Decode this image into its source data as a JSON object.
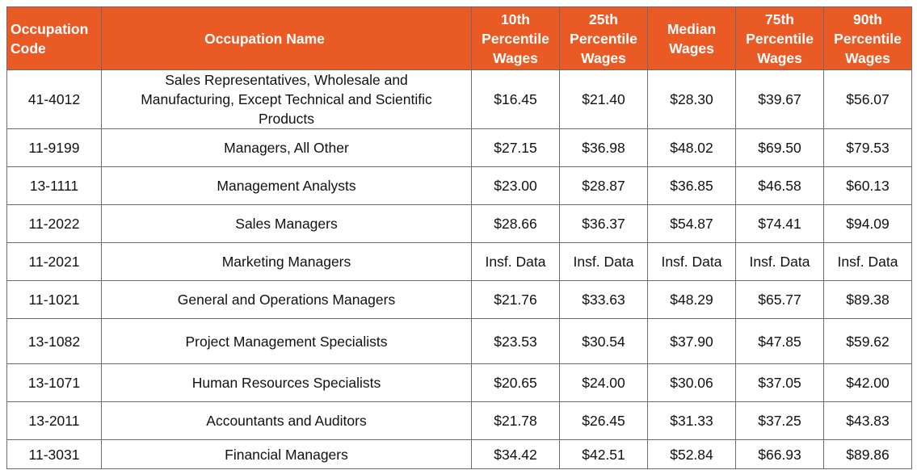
{
  "table": {
    "header": [
      "Occupation Code",
      "Occupation Name",
      "10th Percentile Wages",
      "25th Percentile Wages",
      "Median Wages",
      "75th Percentile Wages",
      "90th Percentile Wages"
    ],
    "rows": [
      [
        "41-4012",
        "Sales Representatives, Wholesale and Manufacturing, Except Technical and Scientific Products",
        "$16.45",
        "$21.40",
        "$28.30",
        "$39.67",
        "$56.07"
      ],
      [
        "11-9199",
        "Managers, All Other",
        "$27.15",
        "$36.98",
        "$48.02",
        "$69.50",
        "$79.53"
      ],
      [
        "13-1111",
        "Management Analysts",
        "$23.00",
        "$28.87",
        "$36.85",
        "$46.58",
        "$60.13"
      ],
      [
        "11-2022",
        "Sales Managers",
        "$28.66",
        "$36.37",
        "$54.87",
        "$74.41",
        "$94.09"
      ],
      [
        "11-2021",
        "Marketing Managers",
        "Insf. Data",
        "Insf. Data",
        "Insf. Data",
        "Insf. Data",
        "Insf. Data"
      ],
      [
        "11-1021",
        "General and Operations Managers",
        "$21.76",
        "$33.63",
        "$48.29",
        "$65.77",
        "$89.38"
      ],
      [
        "13-1082",
        "Project Management Specialists",
        "$23.53",
        "$30.54",
        "$37.90",
        "$47.85",
        "$59.62"
      ],
      [
        "13-1071",
        "Human Resources Specialists",
        "$20.65",
        "$24.00",
        "$30.06",
        "$37.05",
        "$42.00"
      ],
      [
        "13-2011",
        "Accountants and Auditors",
        "$21.78",
        "$26.45",
        "$31.33",
        "$37.25",
        "$43.83"
      ],
      [
        "11-3031",
        "Financial Managers",
        "$34.42",
        "$42.51",
        "$52.84",
        "$66.93",
        "$89.86"
      ]
    ]
  }
}
